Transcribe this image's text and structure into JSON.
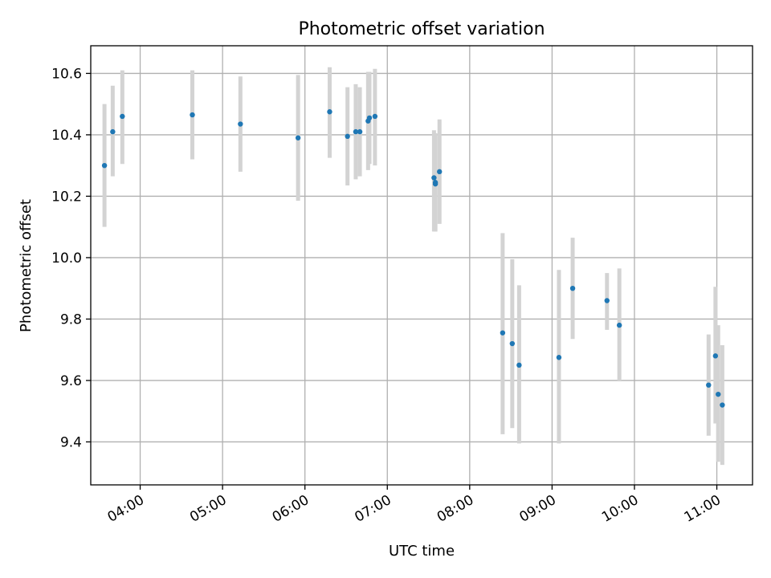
{
  "chart_data": {
    "type": "scatter",
    "title": "Photometric offset variation",
    "xlabel": "UTC time",
    "ylabel": "Photometric offset",
    "x_unit": "time",
    "xlim": [
      "03:24",
      "11:26"
    ],
    "ylim": [
      9.26,
      10.69
    ],
    "x_ticks": [
      "04:00",
      "05:00",
      "06:00",
      "07:00",
      "08:00",
      "09:00",
      "10:00",
      "11:00"
    ],
    "y_ticks": [
      "9.4",
      "9.6",
      "9.8",
      "10.0",
      "10.2",
      "10.4",
      "10.6"
    ],
    "grid": true,
    "point_color": "#1f77b4",
    "errorbar_color": "#d3d3d3",
    "points": [
      {
        "x": "03:34",
        "y": 10.3,
        "yerr_low": 10.1,
        "yerr_high": 10.5
      },
      {
        "x": "03:40",
        "y": 10.41,
        "yerr_low": 10.265,
        "yerr_high": 10.56
      },
      {
        "x": "03:47",
        "y": 10.46,
        "yerr_low": 10.305,
        "yerr_high": 10.61
      },
      {
        "x": "04:38",
        "y": 10.465,
        "yerr_low": 10.32,
        "yerr_high": 10.61
      },
      {
        "x": "05:13",
        "y": 10.435,
        "yerr_low": 10.28,
        "yerr_high": 10.59
      },
      {
        "x": "05:55",
        "y": 10.39,
        "yerr_low": 10.185,
        "yerr_high": 10.595
      },
      {
        "x": "06:18",
        "y": 10.475,
        "yerr_low": 10.325,
        "yerr_high": 10.62
      },
      {
        "x": "06:31",
        "y": 10.395,
        "yerr_low": 10.235,
        "yerr_high": 10.555
      },
      {
        "x": "06:37",
        "y": 10.41,
        "yerr_low": 10.255,
        "yerr_high": 10.565
      },
      {
        "x": "06:40",
        "y": 10.41,
        "yerr_low": 10.265,
        "yerr_high": 10.555
      },
      {
        "x": "06:46",
        "y": 10.445,
        "yerr_low": 10.285,
        "yerr_high": 10.605
      },
      {
        "x": "06:47",
        "y": 10.455,
        "yerr_low": 10.305,
        "yerr_high": 10.605
      },
      {
        "x": "06:51",
        "y": 10.46,
        "yerr_low": 10.3,
        "yerr_high": 10.615
      },
      {
        "x": "07:34",
        "y": 10.26,
        "yerr_low": 10.085,
        "yerr_high": 10.415
      },
      {
        "x": "07:35",
        "y": 10.245,
        "yerr_low": 10.085,
        "yerr_high": 10.405
      },
      {
        "x": "07:35",
        "y": 10.24,
        "yerr_low": 10.085,
        "yerr_high": 10.395
      },
      {
        "x": "07:38",
        "y": 10.28,
        "yerr_low": 10.11,
        "yerr_high": 10.45
      },
      {
        "x": "08:24",
        "y": 9.755,
        "yerr_low": 9.425,
        "yerr_high": 10.08
      },
      {
        "x": "08:31",
        "y": 9.72,
        "yerr_low": 9.445,
        "yerr_high": 9.995
      },
      {
        "x": "08:36",
        "y": 9.65,
        "yerr_low": 9.395,
        "yerr_high": 9.91
      },
      {
        "x": "09:05",
        "y": 9.675,
        "yerr_low": 9.395,
        "yerr_high": 9.96
      },
      {
        "x": "09:15",
        "y": 9.9,
        "yerr_low": 9.735,
        "yerr_high": 10.065
      },
      {
        "x": "09:40",
        "y": 9.86,
        "yerr_low": 9.765,
        "yerr_high": 9.95
      },
      {
        "x": "09:49",
        "y": 9.78,
        "yerr_low": 9.6,
        "yerr_high": 9.965
      },
      {
        "x": "10:54",
        "y": 9.585,
        "yerr_low": 9.42,
        "yerr_high": 9.75
      },
      {
        "x": "10:59",
        "y": 9.68,
        "yerr_low": 9.46,
        "yerr_high": 9.905
      },
      {
        "x": "11:01",
        "y": 9.555,
        "yerr_low": 9.335,
        "yerr_high": 9.78
      },
      {
        "x": "11:04",
        "y": 9.52,
        "yerr_low": 9.325,
        "yerr_high": 9.715
      }
    ]
  }
}
